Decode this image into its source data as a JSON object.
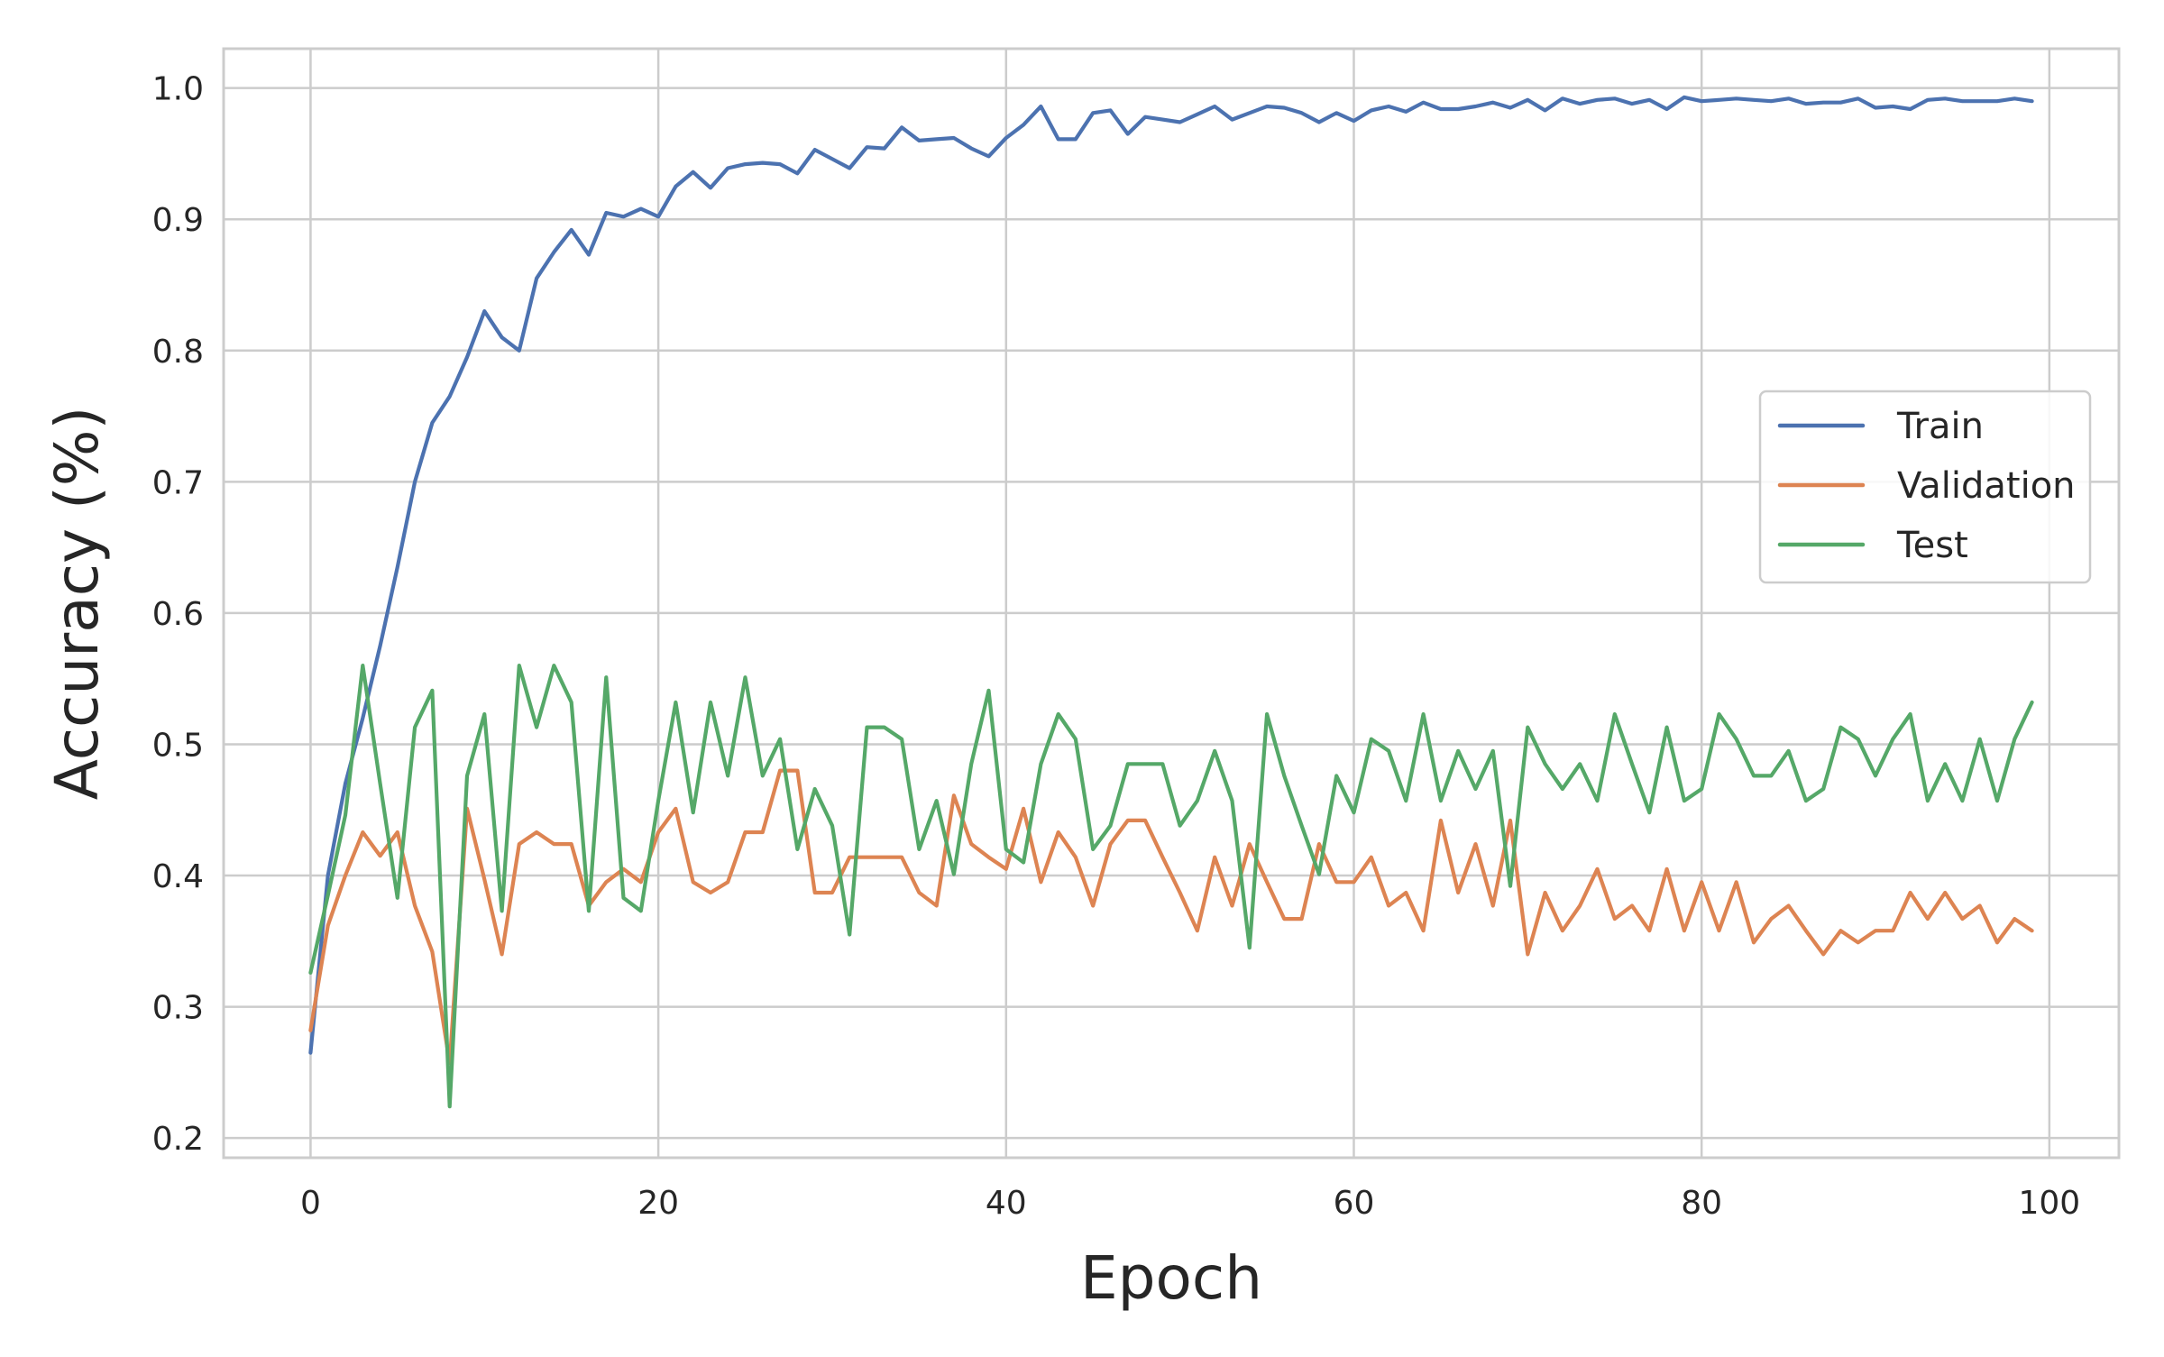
{
  "chart_data": {
    "type": "line",
    "xlabel": "Epoch",
    "ylabel": "Accuracy (%)",
    "xlim": [
      -5,
      104
    ],
    "ylim": [
      0.185,
      1.03
    ],
    "xticks": [
      0,
      20,
      40,
      60,
      80,
      100
    ],
    "yticks": [
      0.2,
      0.3,
      0.4,
      0.5,
      0.6,
      0.7,
      0.8,
      0.9,
      1.0
    ],
    "xtick_labels": [
      "0",
      "20",
      "40",
      "60",
      "80",
      "100"
    ],
    "ytick_labels": [
      "0.2",
      "0.3",
      "0.4",
      "0.5",
      "0.6",
      "0.7",
      "0.8",
      "0.9",
      "1.0"
    ],
    "grid": true,
    "legend_position": "center-right",
    "series": [
      {
        "name": "Train",
        "color": "#4c72b0",
        "values": [
          0.265,
          0.4,
          0.47,
          0.52,
          0.575,
          0.635,
          0.7,
          0.745,
          0.765,
          0.795,
          0.83,
          0.81,
          0.8,
          0.855,
          0.875,
          0.892,
          0.873,
          0.905,
          0.902,
          0.908,
          0.902,
          0.925,
          0.936,
          0.924,
          0.939,
          0.942,
          0.943,
          0.942,
          0.935,
          0.953,
          0.946,
          0.939,
          0.955,
          0.954,
          0.97,
          0.96,
          0.961,
          0.962,
          0.954,
          0.948,
          0.962,
          0.972,
          0.986,
          0.961,
          0.961,
          0.981,
          0.983,
          0.965,
          0.978,
          0.976,
          0.974,
          0.98,
          0.986,
          0.976,
          0.981,
          0.986,
          0.985,
          0.981,
          0.974,
          0.981,
          0.975,
          0.983,
          0.986,
          0.982,
          0.989,
          0.984,
          0.984,
          0.986,
          0.989,
          0.985,
          0.991,
          0.983,
          0.992,
          0.988,
          0.991,
          0.992,
          0.988,
          0.991,
          0.984,
          0.993,
          0.99,
          0.991,
          0.992,
          0.991,
          0.99,
          0.992,
          0.988,
          0.989,
          0.989,
          0.992,
          0.985,
          0.986,
          0.984,
          0.991,
          0.992,
          0.99,
          0.99,
          0.99,
          0.992,
          0.99
        ]
      },
      {
        "name": "Validation",
        "color": "#dd8452",
        "values": [
          0.282,
          0.362,
          0.4,
          0.433,
          0.415,
          0.433,
          0.377,
          0.342,
          0.257,
          0.451,
          0.397,
          0.34,
          0.424,
          0.433,
          0.424,
          0.424,
          0.377,
          0.395,
          0.405,
          0.395,
          0.433,
          0.451,
          0.395,
          0.387,
          0.395,
          0.433,
          0.433,
          0.48,
          0.48,
          0.387,
          0.387,
          0.414,
          0.414,
          0.414,
          0.414,
          0.387,
          0.377,
          0.461,
          0.424,
          0.414,
          0.405,
          0.451,
          0.395,
          0.433,
          0.414,
          0.377,
          0.424,
          0.442,
          0.442,
          0.414,
          0.387,
          0.358,
          0.414,
          0.377,
          0.424,
          0.395,
          0.367,
          0.367,
          0.424,
          0.395,
          0.395,
          0.414,
          0.377,
          0.387,
          0.358,
          0.442,
          0.387,
          0.424,
          0.377,
          0.442,
          0.34,
          0.387,
          0.358,
          0.377,
          0.405,
          0.367,
          0.377,
          0.358,
          0.405,
          0.358,
          0.395,
          0.358,
          0.395,
          0.349,
          0.367,
          0.377,
          0.358,
          0.34,
          0.358,
          0.349,
          0.358,
          0.358,
          0.387,
          0.367,
          0.387,
          0.367,
          0.377,
          0.349,
          0.367,
          0.358
        ]
      },
      {
        "name": "Test",
        "color": "#55a868",
        "values": [
          0.326,
          0.385,
          0.446,
          0.56,
          0.47,
          0.383,
          0.513,
          0.541,
          0.224,
          0.476,
          0.523,
          0.373,
          0.56,
          0.513,
          0.56,
          0.532,
          0.373,
          0.551,
          0.383,
          0.373,
          0.457,
          0.532,
          0.448,
          0.532,
          0.476,
          0.551,
          0.476,
          0.504,
          0.42,
          0.466,
          0.438,
          0.355,
          0.513,
          0.513,
          0.504,
          0.42,
          0.457,
          0.401,
          0.485,
          0.541,
          0.42,
          0.41,
          0.485,
          0.523,
          0.504,
          0.42,
          0.438,
          0.485,
          0.485,
          0.485,
          0.438,
          0.457,
          0.495,
          0.457,
          0.345,
          0.523,
          0.476,
          0.438,
          0.401,
          0.476,
          0.448,
          0.504,
          0.495,
          0.457,
          0.523,
          0.457,
          0.495,
          0.466,
          0.495,
          0.392,
          0.513,
          0.485,
          0.466,
          0.485,
          0.457,
          0.523,
          0.485,
          0.448,
          0.513,
          0.457,
          0.466,
          0.523,
          0.504,
          0.476,
          0.476,
          0.495,
          0.457,
          0.466,
          0.513,
          0.504,
          0.476,
          0.504,
          0.523,
          0.457,
          0.485,
          0.457,
          0.504,
          0.457,
          0.504,
          0.532
        ]
      }
    ]
  }
}
